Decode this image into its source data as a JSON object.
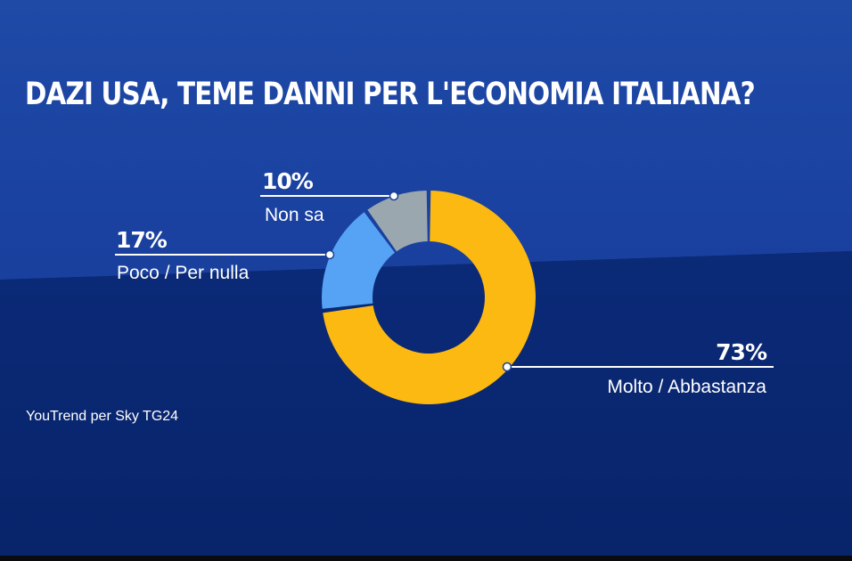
{
  "title": "DAZI USA, TEME DANNI PER L'ECONOMIA ITALIANA?",
  "source": "YouTrend per Sky TG24",
  "colors": {
    "molto": "#fbb911",
    "poco": "#56a3f5",
    "non_sa": "#9aa7ae"
  },
  "chart_data": {
    "type": "pie",
    "variant": "donut",
    "title": "DAZI USA, TEME DANNI PER L'ECONOMIA ITALIANA?",
    "slices": [
      {
        "label": "Molto / Abbastanza",
        "value": 73,
        "display": "73%",
        "color": "#fbb911"
      },
      {
        "label": "Poco / Per nulla",
        "value": 17,
        "display": "17%",
        "color": "#56a3f5"
      },
      {
        "label": "Non sa",
        "value": 10,
        "display": "10%",
        "color": "#9aa7ae"
      }
    ]
  }
}
